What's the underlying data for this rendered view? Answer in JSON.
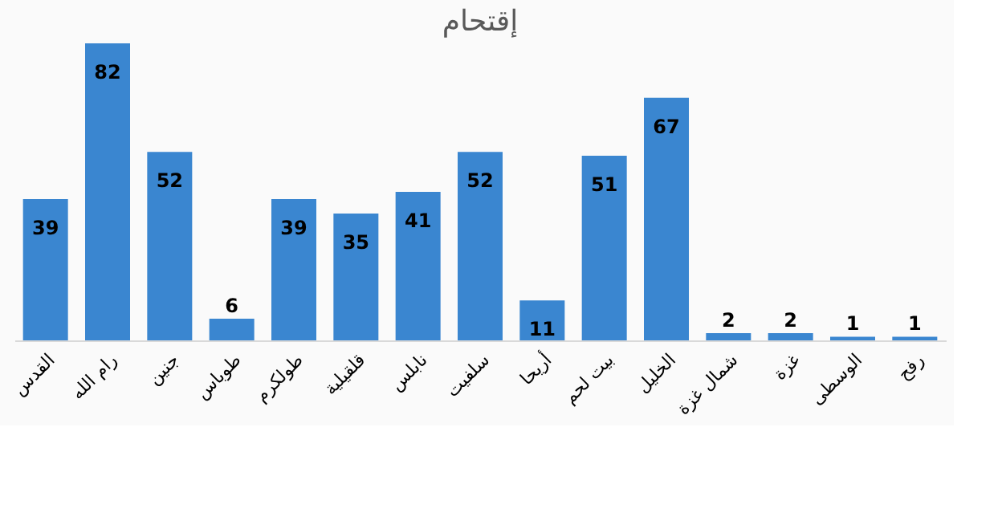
{
  "chart_data": {
    "type": "bar",
    "title": "إقتحام",
    "categories": [
      "القدس",
      "رام الله",
      "جنين",
      "طوباس",
      "طولكرم",
      "قلقيلية",
      "نابلس",
      "سلفيت",
      "أريحا",
      "بيت لحم",
      "الخليل",
      "شمال غزة",
      "غزة",
      "الوسطى",
      "رفح"
    ],
    "values": [
      39,
      82,
      52,
      6,
      39,
      35,
      41,
      52,
      11,
      51,
      67,
      2,
      2,
      1,
      1
    ],
    "color": "#3a86d0",
    "data_labels": true,
    "grid": false
  }
}
